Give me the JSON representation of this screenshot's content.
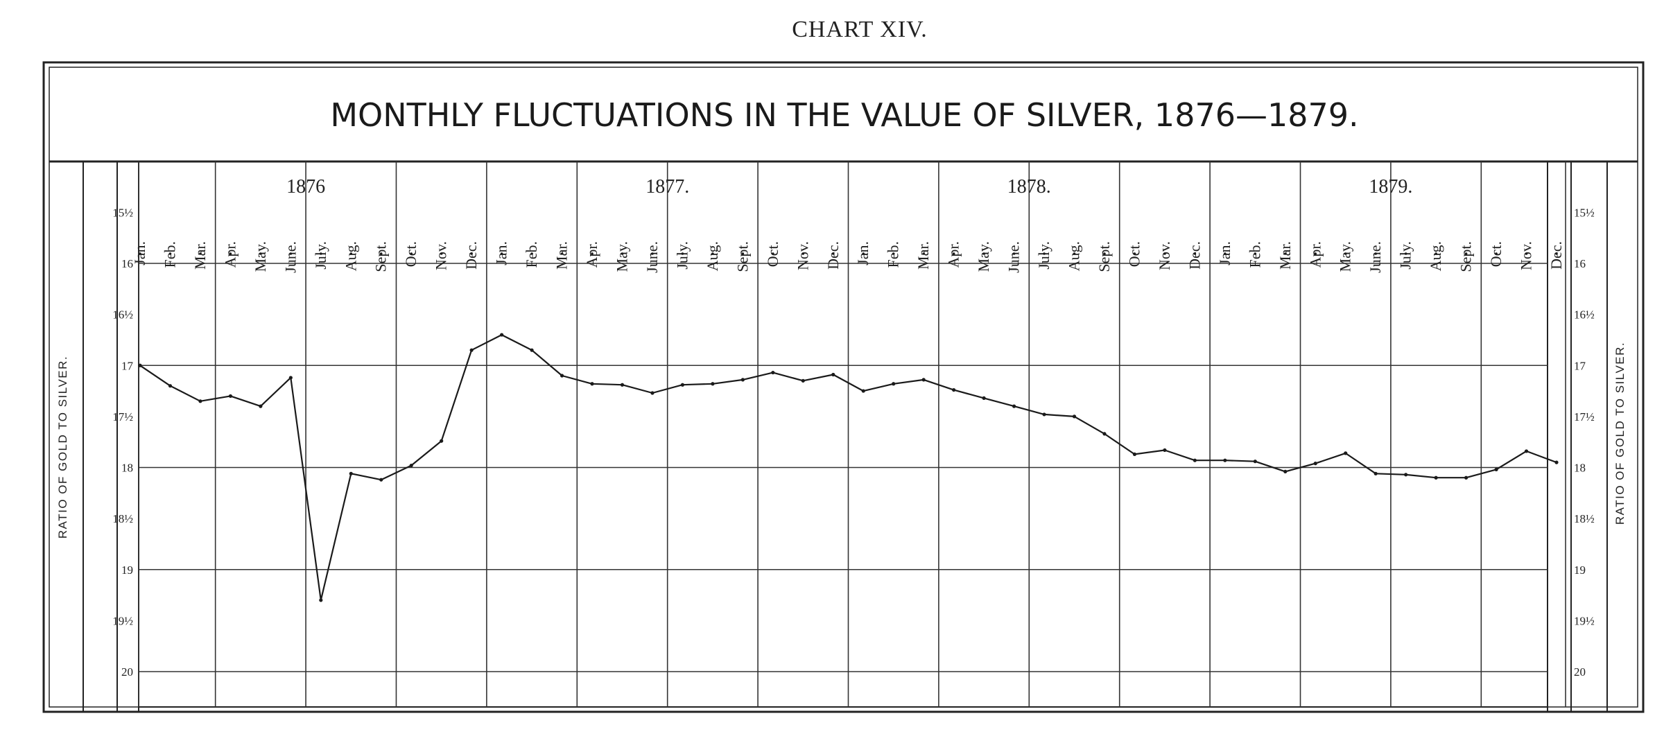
{
  "header": {
    "chart_number": "CHART XIV."
  },
  "chart_data": {
    "type": "line",
    "title": "MONTHLY FLUCTUATIONS IN THE VALUE OF SILVER, 1876—1879.",
    "ylabel_left": "RATIO OF GOLD TO SILVER.",
    "ylabel_right": "RATIO OF GOLD TO SILVER.",
    "y_range": [
      15.5,
      20
    ],
    "y_inverted": true,
    "grid": true,
    "y_ticks": [
      {
        "value": 15.5,
        "label": "15½"
      },
      {
        "value": 16,
        "label": "16"
      },
      {
        "value": 16.5,
        "label": "16½"
      },
      {
        "value": 17,
        "label": "17"
      },
      {
        "value": 17.5,
        "label": "17½"
      },
      {
        "value": 18,
        "label": "18"
      },
      {
        "value": 18.5,
        "label": "18½"
      },
      {
        "value": 19,
        "label": "19"
      },
      {
        "value": 19.5,
        "label": "19½"
      },
      {
        "value": 20,
        "label": "20"
      }
    ],
    "years": [
      "1876",
      "1877.",
      "1878.",
      "1879."
    ],
    "months": [
      "Jan.",
      "Feb.",
      "Mar.",
      "Apr.",
      "May.",
      "June.",
      "July.",
      "Aug.",
      "Sept.",
      "Oct.",
      "Nov.",
      "Dec.",
      "Jan.",
      "Feb.",
      "Mar.",
      "Apr.",
      "May.",
      "June.",
      "July.",
      "Aug.",
      "Sept.",
      "Oct.",
      "Nov.",
      "Dec.",
      "Jan.",
      "Feb.",
      "Mar.",
      "Apr.",
      "May.",
      "June.",
      "July.",
      "Aug.",
      "Sept.",
      "Oct.",
      "Nov.",
      "Dec.",
      "Jan.",
      "Feb.",
      "Mar.",
      "Apr.",
      "May.",
      "June.",
      "July.",
      "Aug.",
      "Sept.",
      "Oct.",
      "Nov.",
      "Dec."
    ],
    "series": [
      {
        "values": [
          17.0,
          17.2,
          17.35,
          17.3,
          17.4,
          17.12,
          19.3,
          18.06,
          18.12,
          17.98,
          17.74,
          16.85,
          16.7,
          16.85,
          17.1,
          17.18,
          17.19,
          17.27,
          17.19,
          17.18,
          17.14,
          17.07,
          17.15,
          17.09,
          17.25,
          17.18,
          17.14,
          17.24,
          17.32,
          17.4,
          17.48,
          17.5,
          17.67,
          17.87,
          17.83,
          17.93,
          17.93,
          17.94,
          18.04,
          17.96,
          17.86,
          18.06,
          18.07,
          18.1,
          18.1,
          18.02,
          17.84,
          17.95
        ]
      }
    ]
  }
}
